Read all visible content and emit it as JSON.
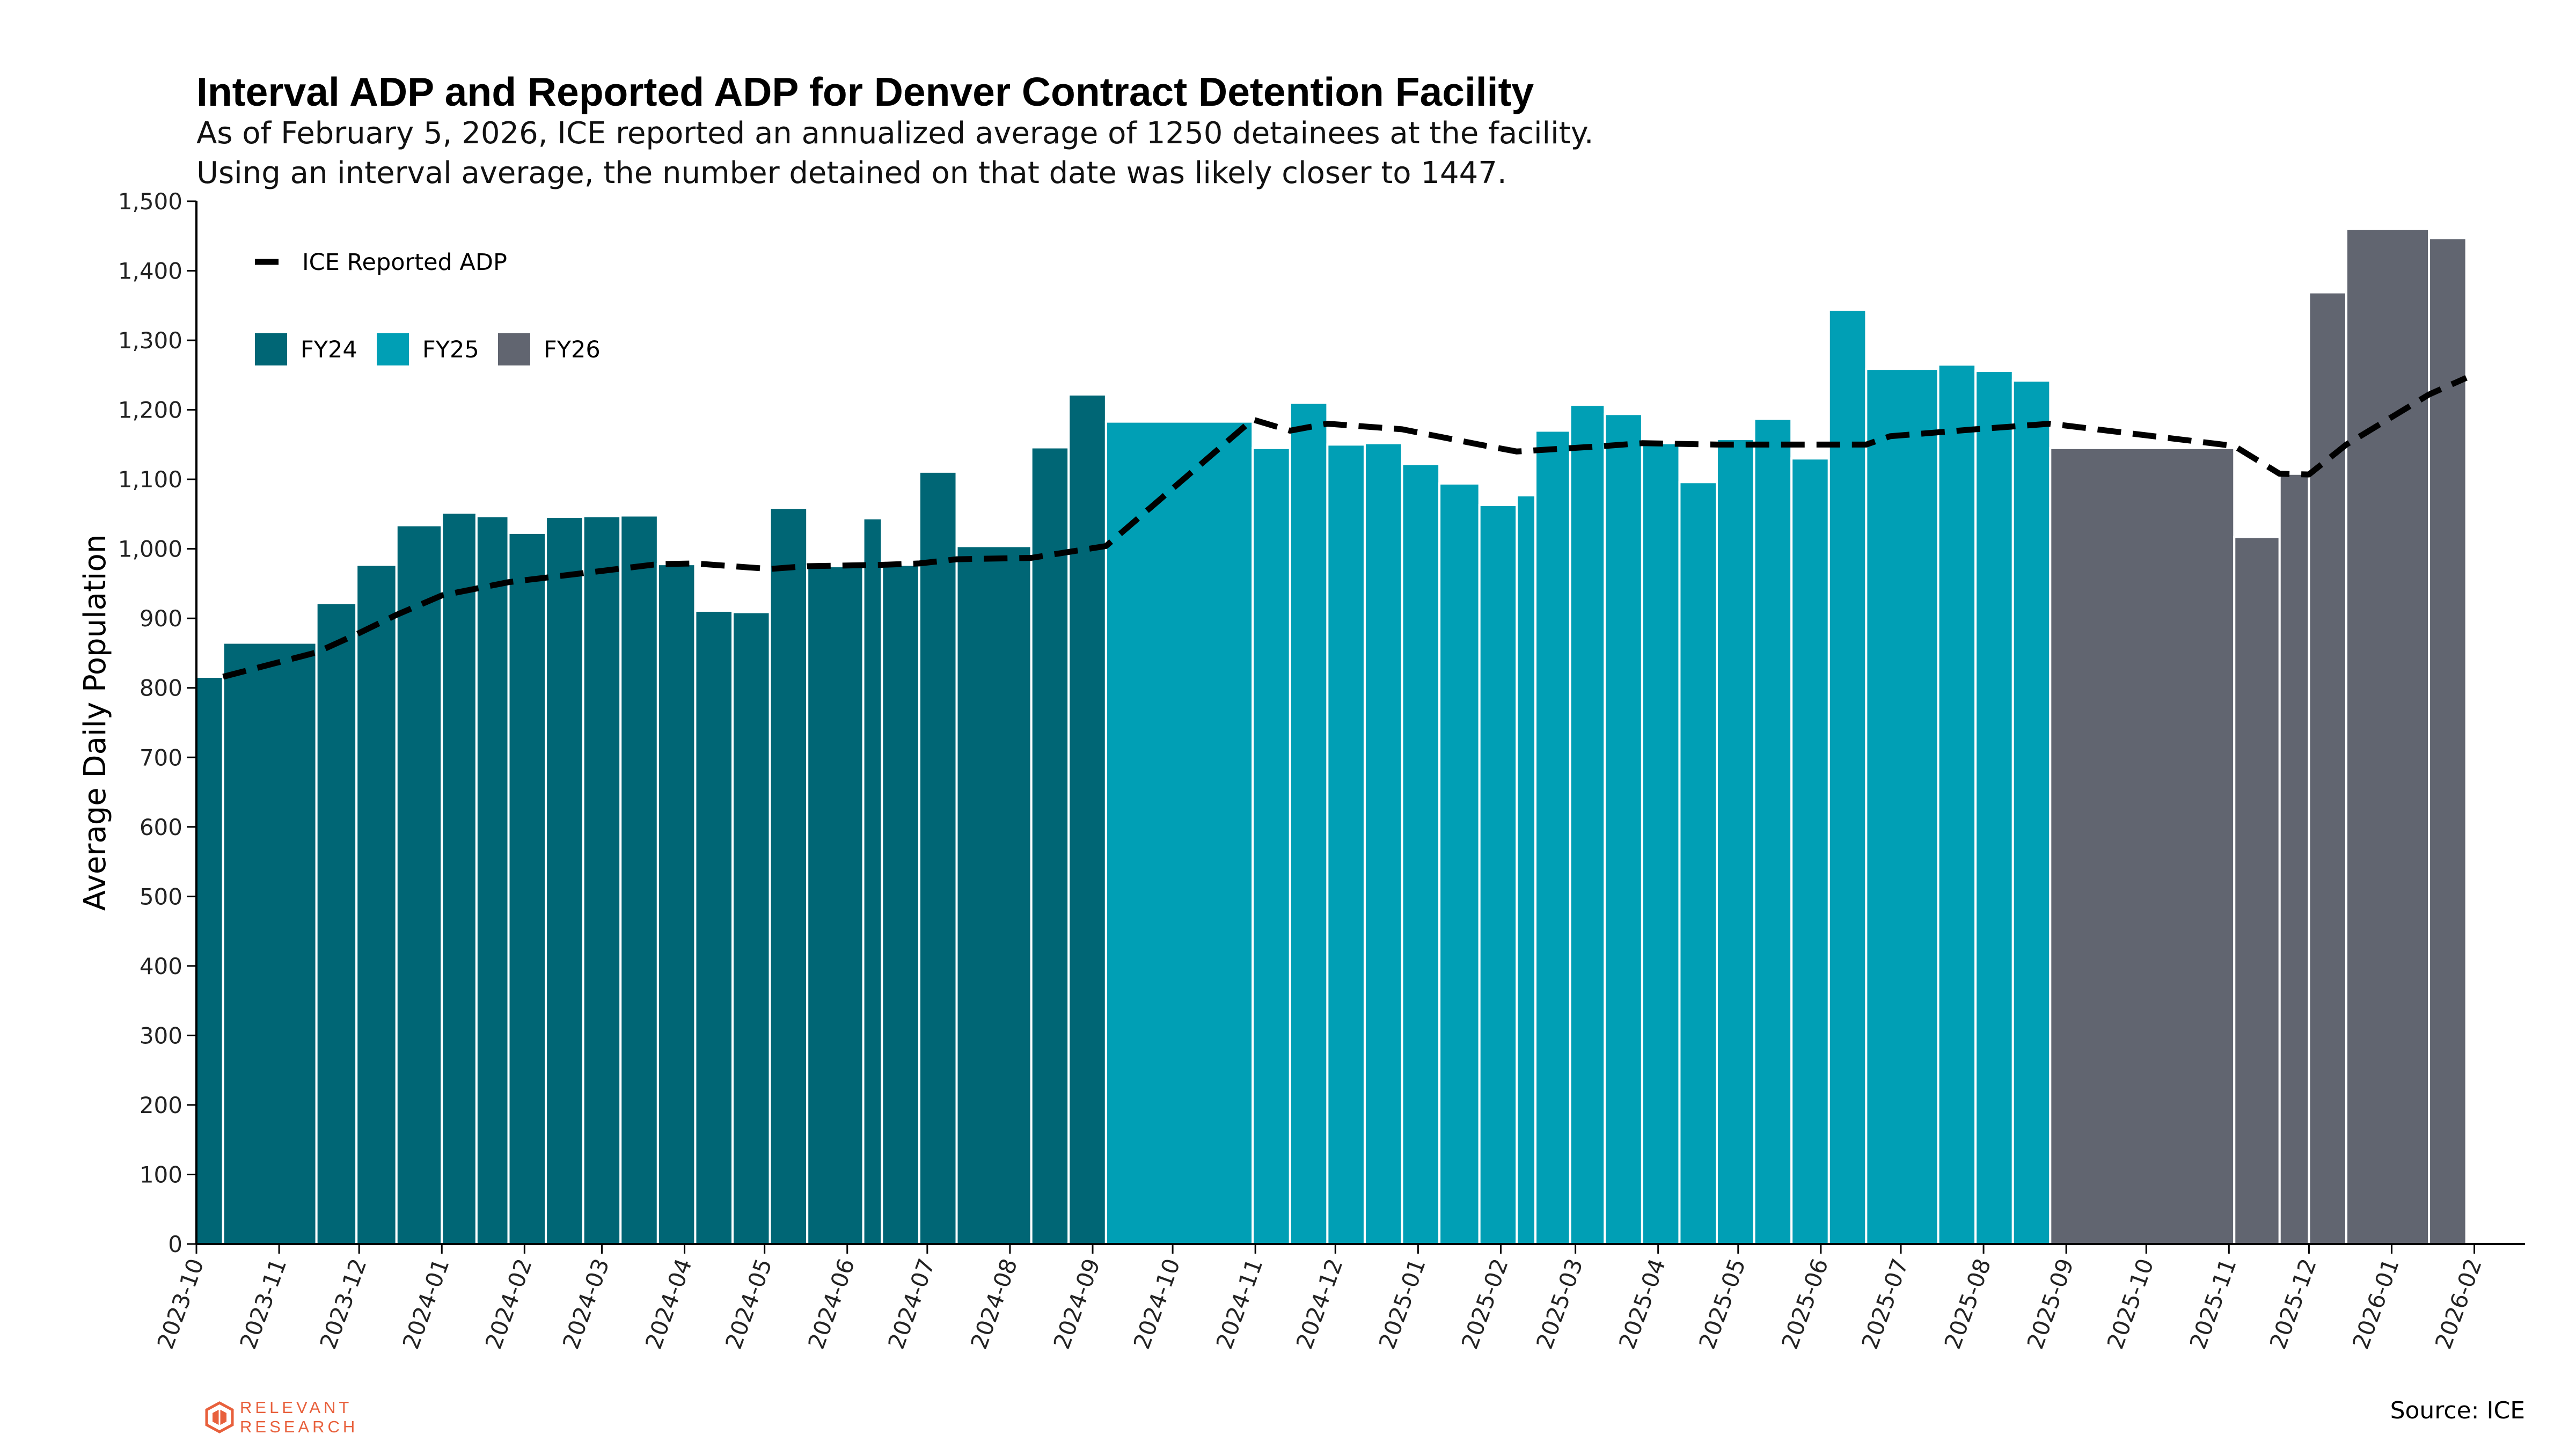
{
  "title": "Interval ADP and Reported ADP for Denver Contract Detention Facility",
  "subtitle_lines": [
    "As of February 5, 2026, ICE reported an annualized average of 1250 detainees at the facility.",
    "Using an interval average, the number detained on that date was likely closer to 1447."
  ],
  "source": "Source: ICE",
  "logo_text": [
    "RELEVANT",
    "RESEARCH"
  ],
  "colors": {
    "FY24": "#006675",
    "FY25": "#009fb5",
    "FY26": "#616570",
    "line": "#000000",
    "logo": "#e8603c"
  },
  "chart_data": {
    "type": "bar",
    "ylabel": "Average Daily Population",
    "xlabel": "",
    "ylim": [
      0,
      1500
    ],
    "yticks": [
      0,
      100,
      200,
      300,
      400,
      500,
      600,
      700,
      800,
      900,
      1000,
      1100,
      1200,
      1300,
      1400,
      1500
    ],
    "xlim": [
      "2023-10-01",
      "2026-02-20"
    ],
    "xticks": [
      "2023-10",
      "2023-11",
      "2023-12",
      "2024-01",
      "2024-02",
      "2024-03",
      "2024-04",
      "2024-05",
      "2024-06",
      "2024-07",
      "2024-08",
      "2024-09",
      "2024-10",
      "2024-11",
      "2024-12",
      "2025-01",
      "2025-02",
      "2025-03",
      "2025-04",
      "2025-05",
      "2025-06",
      "2025-07",
      "2025-08",
      "2025-09",
      "2025-10",
      "2025-11",
      "2025-12",
      "2026-01",
      "2026-02"
    ],
    "legend": {
      "placement": "top-left",
      "line_label": "ICE Reported ADP",
      "bar_labels": [
        "FY24",
        "FY25",
        "FY26"
      ]
    },
    "bars": [
      {
        "start": "2023-10-01",
        "end": "2023-10-11",
        "value": 816,
        "fy": "FY24"
      },
      {
        "start": "2023-10-11",
        "end": "2023-11-15",
        "value": 865,
        "fy": "FY24"
      },
      {
        "start": "2023-11-15",
        "end": "2023-11-30",
        "value": 922,
        "fy": "FY24"
      },
      {
        "start": "2023-11-30",
        "end": "2023-12-15",
        "value": 977,
        "fy": "FY24"
      },
      {
        "start": "2023-12-15",
        "end": "2024-01-01",
        "value": 1034,
        "fy": "FY24"
      },
      {
        "start": "2024-01-01",
        "end": "2024-01-14",
        "value": 1052,
        "fy": "FY24"
      },
      {
        "start": "2024-01-14",
        "end": "2024-01-26",
        "value": 1047,
        "fy": "FY24"
      },
      {
        "start": "2024-01-26",
        "end": "2024-02-09",
        "value": 1023,
        "fy": "FY24"
      },
      {
        "start": "2024-02-09",
        "end": "2024-02-23",
        "value": 1046,
        "fy": "FY24"
      },
      {
        "start": "2024-02-23",
        "end": "2024-03-08",
        "value": 1047,
        "fy": "FY24"
      },
      {
        "start": "2024-03-08",
        "end": "2024-03-22",
        "value": 1048,
        "fy": "FY24"
      },
      {
        "start": "2024-03-22",
        "end": "2024-04-05",
        "value": 978,
        "fy": "FY24"
      },
      {
        "start": "2024-04-05",
        "end": "2024-04-19",
        "value": 911,
        "fy": "FY24"
      },
      {
        "start": "2024-04-19",
        "end": "2024-05-03",
        "value": 909,
        "fy": "FY24"
      },
      {
        "start": "2024-05-03",
        "end": "2024-05-17",
        "value": 1059,
        "fy": "FY24"
      },
      {
        "start": "2024-05-17",
        "end": "2024-06-07",
        "value": 975,
        "fy": "FY24"
      },
      {
        "start": "2024-06-07",
        "end": "2024-06-14",
        "value": 1044,
        "fy": "FY24"
      },
      {
        "start": "2024-06-14",
        "end": "2024-06-28",
        "value": 977,
        "fy": "FY24"
      },
      {
        "start": "2024-06-28",
        "end": "2024-07-12",
        "value": 1111,
        "fy": "FY24"
      },
      {
        "start": "2024-07-12",
        "end": "2024-08-09",
        "value": 1004,
        "fy": "FY24"
      },
      {
        "start": "2024-08-09",
        "end": "2024-08-23",
        "value": 1146,
        "fy": "FY24"
      },
      {
        "start": "2024-08-23",
        "end": "2024-09-06",
        "value": 1222,
        "fy": "FY24"
      },
      {
        "start": "2024-09-06",
        "end": "2024-10-31",
        "value": 1183,
        "fy": "FY25"
      },
      {
        "start": "2024-10-31",
        "end": "2024-11-14",
        "value": 1145,
        "fy": "FY25"
      },
      {
        "start": "2024-11-14",
        "end": "2024-11-28",
        "value": 1210,
        "fy": "FY25"
      },
      {
        "start": "2024-11-28",
        "end": "2024-12-12",
        "value": 1150,
        "fy": "FY25"
      },
      {
        "start": "2024-12-12",
        "end": "2024-12-26",
        "value": 1152,
        "fy": "FY25"
      },
      {
        "start": "2024-12-26",
        "end": "2025-01-09",
        "value": 1122,
        "fy": "FY25"
      },
      {
        "start": "2025-01-09",
        "end": "2025-01-24",
        "value": 1094,
        "fy": "FY25"
      },
      {
        "start": "2025-01-24",
        "end": "2025-02-07",
        "value": 1063,
        "fy": "FY25"
      },
      {
        "start": "2025-02-07",
        "end": "2025-02-14",
        "value": 1077,
        "fy": "FY25"
      },
      {
        "start": "2025-02-14",
        "end": "2025-02-27",
        "value": 1170,
        "fy": "FY25"
      },
      {
        "start": "2025-02-27",
        "end": "2025-03-12",
        "value": 1207,
        "fy": "FY25"
      },
      {
        "start": "2025-03-12",
        "end": "2025-03-26",
        "value": 1194,
        "fy": "FY25"
      },
      {
        "start": "2025-03-26",
        "end": "2025-04-09",
        "value": 1152,
        "fy": "FY25"
      },
      {
        "start": "2025-04-09",
        "end": "2025-04-23",
        "value": 1096,
        "fy": "FY25"
      },
      {
        "start": "2025-04-23",
        "end": "2025-05-07",
        "value": 1158,
        "fy": "FY25"
      },
      {
        "start": "2025-05-07",
        "end": "2025-05-21",
        "value": 1187,
        "fy": "FY25"
      },
      {
        "start": "2025-05-21",
        "end": "2025-06-04",
        "value": 1130,
        "fy": "FY25"
      },
      {
        "start": "2025-06-04",
        "end": "2025-06-18",
        "value": 1344,
        "fy": "FY25"
      },
      {
        "start": "2025-06-18",
        "end": "2025-07-15",
        "value": 1259,
        "fy": "FY25"
      },
      {
        "start": "2025-07-15",
        "end": "2025-07-29",
        "value": 1265,
        "fy": "FY25"
      },
      {
        "start": "2025-07-29",
        "end": "2025-08-12",
        "value": 1256,
        "fy": "FY25"
      },
      {
        "start": "2025-08-12",
        "end": "2025-08-26",
        "value": 1242,
        "fy": "FY25"
      },
      {
        "start": "2025-08-26",
        "end": "2025-11-03",
        "value": 1145,
        "fy": "FY26"
      },
      {
        "start": "2025-11-03",
        "end": "2025-11-20",
        "value": 1017,
        "fy": "FY26"
      },
      {
        "start": "2025-11-20",
        "end": "2025-12-01",
        "value": 1108,
        "fy": "FY26"
      },
      {
        "start": "2025-12-01",
        "end": "2025-12-15",
        "value": 1369,
        "fy": "FY26"
      },
      {
        "start": "2025-12-15",
        "end": "2026-01-15",
        "value": 1460,
        "fy": "FY26"
      },
      {
        "start": "2026-01-15",
        "end": "2026-01-29",
        "value": 1447,
        "fy": "FY26"
      }
    ],
    "line": {
      "name": "ICE Reported ADP",
      "points": [
        [
          "2023-10-11",
          816
        ],
        [
          "2023-11-15",
          851
        ],
        [
          "2023-11-30",
          877
        ],
        [
          "2023-12-15",
          905
        ],
        [
          "2024-01-01",
          933
        ],
        [
          "2024-01-26",
          952
        ],
        [
          "2024-02-23",
          965
        ],
        [
          "2024-03-22",
          978
        ],
        [
          "2024-04-05",
          979
        ],
        [
          "2024-05-03",
          971
        ],
        [
          "2024-05-17",
          975
        ],
        [
          "2024-06-14",
          977
        ],
        [
          "2024-06-28",
          979
        ],
        [
          "2024-07-12",
          985
        ],
        [
          "2024-08-09",
          987
        ],
        [
          "2024-09-06",
          1004
        ],
        [
          "2024-10-31",
          1186
        ],
        [
          "2024-11-14",
          1170
        ],
        [
          "2024-11-28",
          1180
        ],
        [
          "2024-12-26",
          1172
        ],
        [
          "2025-01-24",
          1150
        ],
        [
          "2025-02-07",
          1140
        ],
        [
          "2025-03-12",
          1148
        ],
        [
          "2025-03-26",
          1152
        ],
        [
          "2025-04-23",
          1150
        ],
        [
          "2025-05-21",
          1150
        ],
        [
          "2025-06-18",
          1150
        ],
        [
          "2025-06-27",
          1162
        ],
        [
          "2025-07-29",
          1172
        ],
        [
          "2025-08-26",
          1180
        ],
        [
          "2025-11-03",
          1148
        ],
        [
          "2025-11-20",
          1108
        ],
        [
          "2025-12-01",
          1107
        ],
        [
          "2025-12-15",
          1150
        ],
        [
          "2026-01-15",
          1222
        ],
        [
          "2026-01-29",
          1246
        ]
      ]
    }
  }
}
